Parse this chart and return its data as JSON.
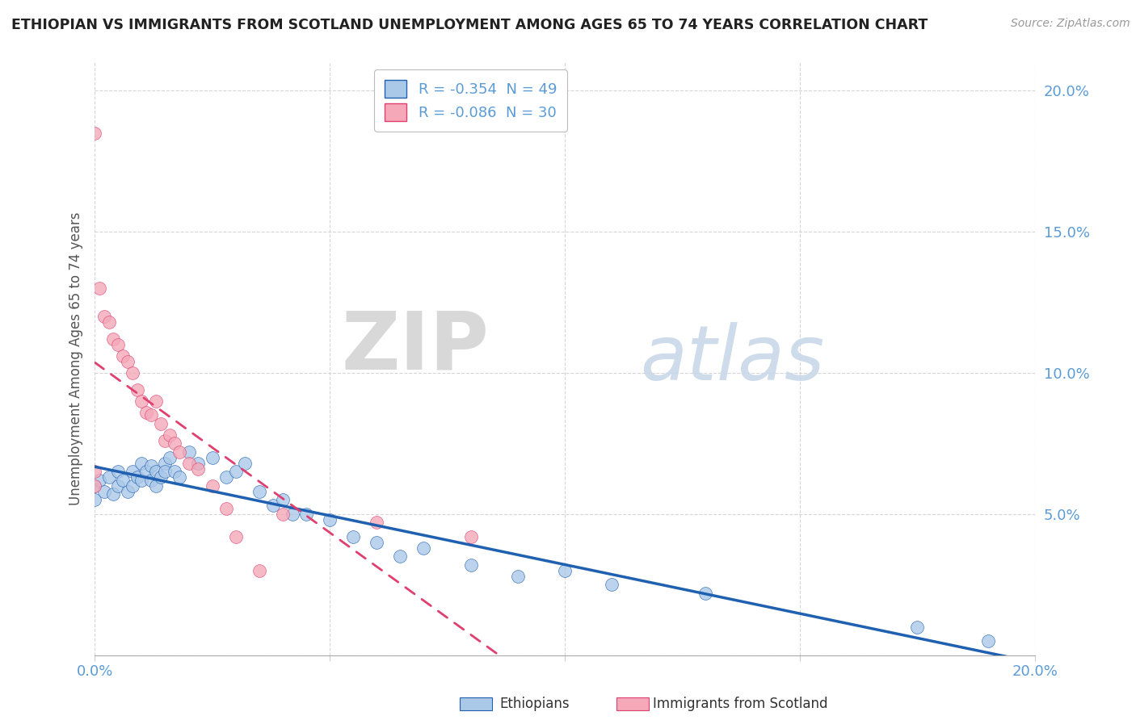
{
  "title": "ETHIOPIAN VS IMMIGRANTS FROM SCOTLAND UNEMPLOYMENT AMONG AGES 65 TO 74 YEARS CORRELATION CHART",
  "source": "Source: ZipAtlas.com",
  "ylabel": "Unemployment Among Ages 65 to 74 years",
  "xlim": [
    0.0,
    0.2
  ],
  "ylim": [
    0.0,
    0.21
  ],
  "yticks": [
    0.0,
    0.05,
    0.1,
    0.15,
    0.2
  ],
  "xticks": [
    0.0,
    0.05,
    0.1,
    0.15,
    0.2
  ],
  "ethiopian_R": "-0.354",
  "ethiopian_N": "49",
  "scotland_R": "-0.086",
  "scotland_N": "30",
  "ethiopian_color": "#aac8e8",
  "scotland_color": "#f4a8b8",
  "trendline_ethiopian_color": "#2060b0",
  "trendline_scotland_color": "#e04070",
  "background_color": "#ffffff",
  "tick_color": "#5b9bd5",
  "watermark_zip": "ZIP",
  "watermark_atlas": "atlas",
  "ethiopians_x": [
    0.0,
    0.0,
    0.001,
    0.002,
    0.003,
    0.004,
    0.005,
    0.005,
    0.006,
    0.007,
    0.008,
    0.008,
    0.009,
    0.01,
    0.01,
    0.011,
    0.012,
    0.012,
    0.013,
    0.013,
    0.014,
    0.015,
    0.015,
    0.016,
    0.017,
    0.018,
    0.02,
    0.022,
    0.025,
    0.028,
    0.03,
    0.032,
    0.035,
    0.038,
    0.04,
    0.042,
    0.045,
    0.05,
    0.055,
    0.06,
    0.065,
    0.07,
    0.08,
    0.09,
    0.1,
    0.11,
    0.13,
    0.175,
    0.19
  ],
  "ethiopians_y": [
    0.06,
    0.055,
    0.062,
    0.058,
    0.063,
    0.057,
    0.065,
    0.06,
    0.062,
    0.058,
    0.065,
    0.06,
    0.063,
    0.068,
    0.062,
    0.065,
    0.067,
    0.062,
    0.065,
    0.06,
    0.063,
    0.068,
    0.065,
    0.07,
    0.065,
    0.063,
    0.072,
    0.068,
    0.07,
    0.063,
    0.065,
    0.068,
    0.058,
    0.053,
    0.055,
    0.05,
    0.05,
    0.048,
    0.042,
    0.04,
    0.035,
    0.038,
    0.032,
    0.028,
    0.03,
    0.025,
    0.022,
    0.01,
    0.005
  ],
  "scotland_x": [
    0.0,
    0.0,
    0.0,
    0.001,
    0.002,
    0.003,
    0.004,
    0.005,
    0.006,
    0.007,
    0.008,
    0.009,
    0.01,
    0.011,
    0.012,
    0.013,
    0.014,
    0.015,
    0.016,
    0.017,
    0.018,
    0.02,
    0.022,
    0.025,
    0.028,
    0.03,
    0.035,
    0.04,
    0.06,
    0.08
  ],
  "scotland_y": [
    0.06,
    0.065,
    0.185,
    0.13,
    0.12,
    0.118,
    0.112,
    0.11,
    0.106,
    0.104,
    0.1,
    0.094,
    0.09,
    0.086,
    0.085,
    0.09,
    0.082,
    0.076,
    0.078,
    0.075,
    0.072,
    0.068,
    0.066,
    0.06,
    0.052,
    0.042,
    0.03,
    0.05,
    0.047,
    0.042
  ]
}
